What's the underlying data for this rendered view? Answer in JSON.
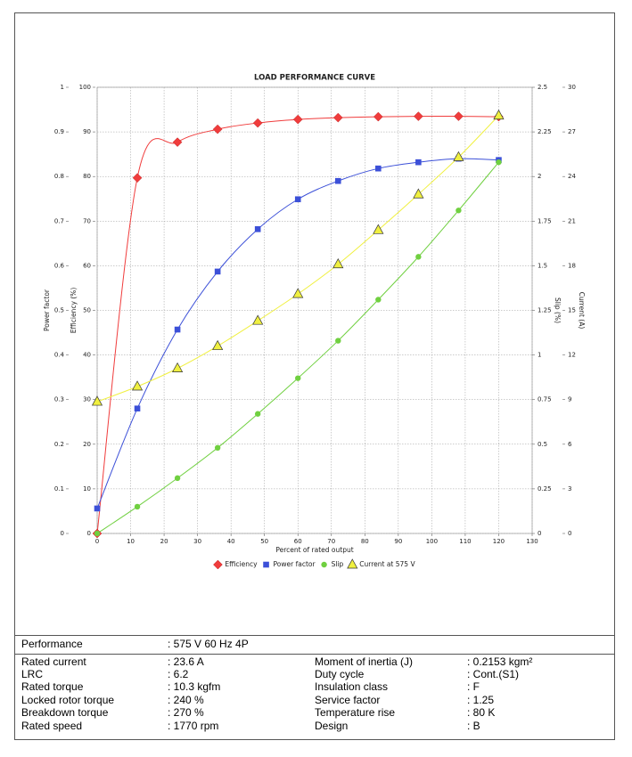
{
  "chart_data": {
    "type": "line",
    "title": "LOAD PERFORMANCE CURVE",
    "xlabel": "Percent of rated output",
    "xlim": [
      0,
      130
    ],
    "xticks": [
      0,
      10,
      20,
      30,
      40,
      50,
      60,
      70,
      80,
      90,
      100,
      110,
      120,
      130
    ],
    "grid": true,
    "y_axes": [
      {
        "label": "Power factor",
        "side": "left",
        "lim": [
          0,
          1
        ],
        "ticks": [
          0,
          0.1,
          0.2,
          0.3,
          0.4,
          0.5,
          0.6,
          0.7,
          0.8,
          0.9,
          1
        ]
      },
      {
        "label": "Efficiency (%)",
        "side": "left",
        "lim": [
          0,
          100
        ],
        "ticks": [
          0,
          10,
          20,
          30,
          40,
          50,
          60,
          70,
          80,
          90,
          100
        ]
      },
      {
        "label": "Slip (%)",
        "side": "right",
        "lim": [
          0,
          2.5
        ],
        "ticks": [
          0,
          0.25,
          0.5,
          0.75,
          1,
          1.25,
          1.5,
          1.75,
          2,
          2.25,
          2.5
        ]
      },
      {
        "label": "Current (A)",
        "side": "right",
        "lim": [
          0,
          30
        ],
        "ticks": [
          0,
          3,
          6,
          9,
          12,
          15,
          18,
          21,
          24,
          27,
          30
        ]
      }
    ],
    "x": [
      0,
      12,
      24,
      36,
      48,
      60,
      72,
      84,
      96,
      108,
      120
    ],
    "series": [
      {
        "name": "Efficiency",
        "axis": 1,
        "marker": "diamond",
        "color": "#f03c3c",
        "values": [
          0,
          79.7,
          87.7,
          90.6,
          92.0,
          92.8,
          93.2,
          93.4,
          93.5,
          93.5,
          93.4
        ]
      },
      {
        "name": "Power factor",
        "axis": 0,
        "marker": "square",
        "color": "#3c50d8",
        "values": [
          0.056,
          0.28,
          0.457,
          0.587,
          0.682,
          0.749,
          0.79,
          0.818,
          0.832,
          0.84,
          0.837
        ]
      },
      {
        "name": "Slip",
        "axis": 2,
        "marker": "circle",
        "color": "#70d040",
        "values": [
          0,
          0.15,
          0.31,
          0.48,
          0.67,
          0.87,
          1.08,
          1.31,
          1.55,
          1.81,
          2.08
        ]
      },
      {
        "name": "Current at 575 V",
        "axis": 3,
        "marker": "triangle",
        "color": "#f0f040",
        "values": [
          8.86,
          9.88,
          11.1,
          12.6,
          14.3,
          16.1,
          18.1,
          20.4,
          22.8,
          25.3,
          28.1
        ]
      }
    ]
  },
  "specs": {
    "performance": {
      "label": "Performance",
      "value": ": 575 V 60 Hz 4P"
    },
    "left": [
      {
        "label": "Rated current",
        "value": ": 23.6 A"
      },
      {
        "label": "LRC",
        "value": ": 6.2"
      },
      {
        "label": "Rated torque",
        "value": ": 10.3 kgfm"
      },
      {
        "label": "Locked rotor torque",
        "value": ": 240 %"
      },
      {
        "label": "Breakdown torque",
        "value": ": 270 %"
      },
      {
        "label": "Rated speed",
        "value": ": 1770 rpm"
      }
    ],
    "right": [
      {
        "label": "Moment of inertia (J)",
        "value": ": 0.2153 kgm²"
      },
      {
        "label": "Duty cycle",
        "value": ": Cont.(S1)"
      },
      {
        "label": "Insulation class",
        "value": ": F"
      },
      {
        "label": "Service factor",
        "value": ": 1.25"
      },
      {
        "label": "Temperature rise",
        "value": ": 80 K"
      },
      {
        "label": "Design",
        "value": ": B"
      }
    ]
  }
}
